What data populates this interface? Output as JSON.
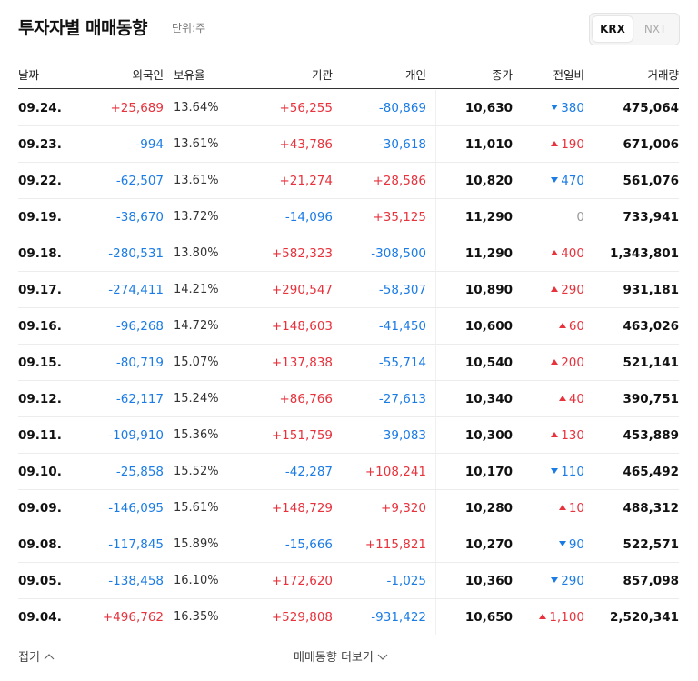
{
  "header": {
    "title": "투자자별 매매동향",
    "unit": "단위:주",
    "tabs": [
      "KRX",
      "NXT"
    ]
  },
  "table": {
    "columns": [
      "날짜",
      "외국인",
      "보유율",
      "기관",
      "개인",
      "종가",
      "전일비",
      "거래량"
    ],
    "rows": [
      [
        "09.24.",
        "+25,689",
        "13.64%",
        "+56,255",
        "-80,869",
        "10,630",
        "380",
        "475,064"
      ],
      [
        "09.23.",
        "-994",
        "13.61%",
        "+43,786",
        "-30,618",
        "11,010",
        "190",
        "671,006"
      ],
      [
        "09.22.",
        "-62,507",
        "13.61%",
        "+21,274",
        "+28,586",
        "10,820",
        "470",
        "561,076"
      ],
      [
        "09.19.",
        "-38,670",
        "13.72%",
        "-14,096",
        "+35,125",
        "11,290",
        "0",
        "733,941"
      ],
      [
        "09.18.",
        "-280,531",
        "13.80%",
        "+582,323",
        "-308,500",
        "11,290",
        "400",
        "1,343,801"
      ],
      [
        "09.17.",
        "-274,411",
        "14.21%",
        "+290,547",
        "-58,307",
        "10,890",
        "290",
        "931,181"
      ],
      [
        "09.16.",
        "-96,268",
        "14.72%",
        "+148,603",
        "-41,450",
        "10,600",
        "60",
        "463,026"
      ],
      [
        "09.15.",
        "-80,719",
        "15.07%",
        "+137,838",
        "-55,714",
        "10,540",
        "200",
        "521,141"
      ],
      [
        "09.12.",
        "-62,117",
        "15.24%",
        "+86,766",
        "-27,613",
        "10,340",
        "40",
        "390,751"
      ],
      [
        "09.11.",
        "-109,910",
        "15.36%",
        "+151,759",
        "-39,083",
        "10,300",
        "130",
        "453,889"
      ],
      [
        "09.10.",
        "-25,858",
        "15.52%",
        "-42,287",
        "+108,241",
        "10,170",
        "110",
        "465,492"
      ],
      [
        "09.09.",
        "-146,095",
        "15.61%",
        "+148,729",
        "+9,320",
        "10,280",
        "10",
        "488,312"
      ],
      [
        "09.08.",
        "-117,845",
        "15.89%",
        "-15,666",
        "+115,821",
        "10,270",
        "90",
        "522,571"
      ],
      [
        "09.05.",
        "-138,458",
        "16.10%",
        "+172,620",
        "-1,025",
        "10,360",
        "290",
        "857,098"
      ],
      [
        "09.04.",
        "+496,762",
        "16.35%",
        "+529,808",
        "-931,422",
        "10,650",
        "1,100",
        "2,520,341"
      ]
    ],
    "change_directions": [
      "down",
      "up",
      "down",
      "none",
      "up",
      "up",
      "up",
      "up",
      "up",
      "up",
      "down",
      "up",
      "down",
      "down",
      "up"
    ]
  },
  "footer": {
    "collapse": "접기",
    "more": "매매동향 더보기"
  }
}
